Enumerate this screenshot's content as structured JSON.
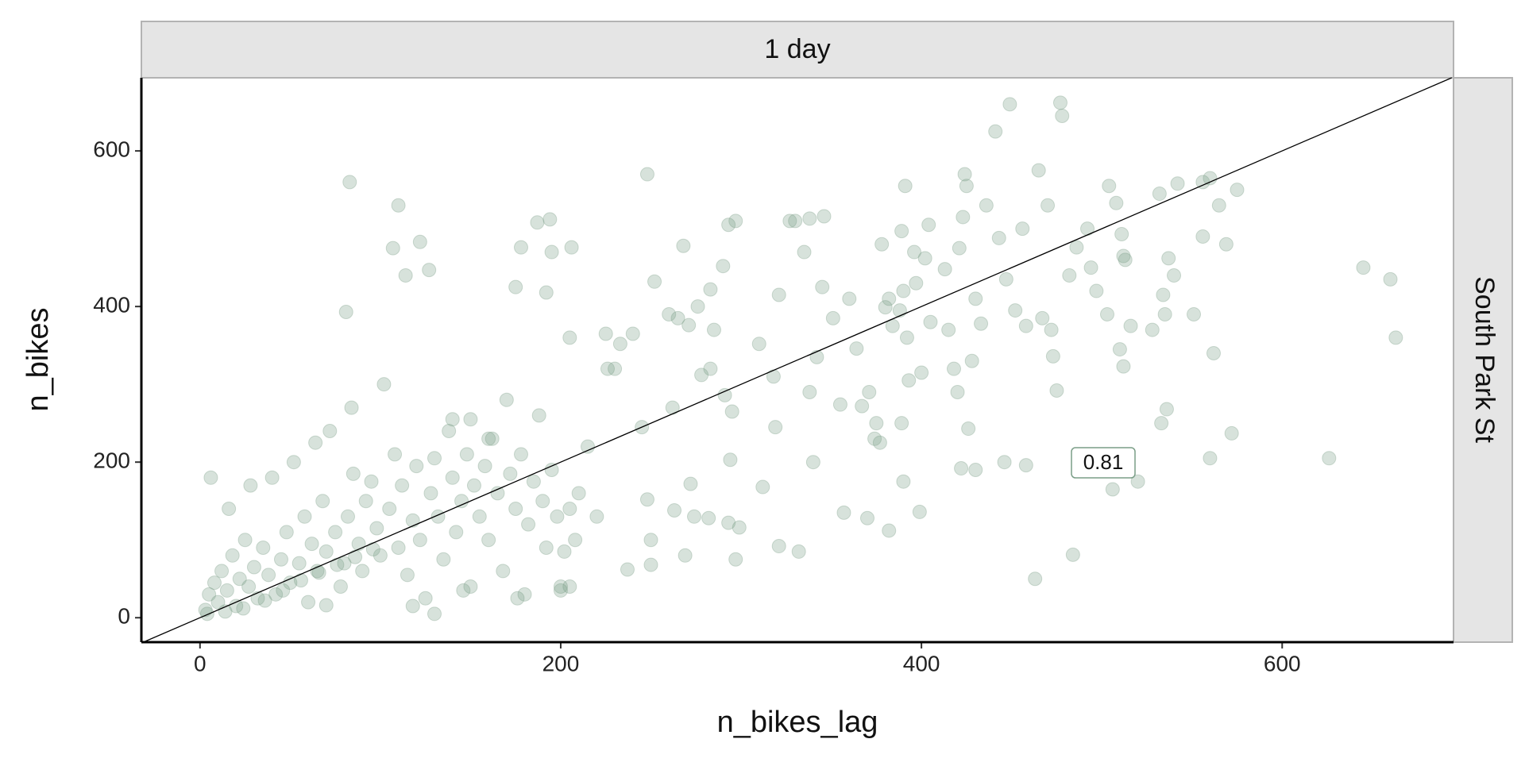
{
  "chart_data": {
    "type": "scatter",
    "facet_col": "1 day",
    "facet_row": "South Park St",
    "x_label": "n_bikes_lag",
    "y_label": "n_bikes",
    "annotation": "0.81",
    "color": "#7a9e87",
    "xlim": [
      -32.5,
      695
    ],
    "ylim": [
      -31.4,
      694
    ],
    "xticks": [
      0,
      200,
      400,
      600
    ],
    "yticks": [
      0,
      200,
      400,
      600
    ],
    "identity_line": true,
    "x": [
      83,
      110,
      107,
      122,
      127,
      114,
      81,
      248,
      194,
      187,
      178,
      195,
      206,
      175,
      192,
      205,
      225,
      233,
      240,
      226,
      230,
      252,
      268,
      283,
      290,
      293,
      297,
      260,
      265,
      271,
      276,
      285,
      283,
      278,
      262,
      245,
      248,
      263,
      272,
      250,
      237,
      250,
      269,
      274,
      282,
      293,
      299,
      297,
      294,
      291,
      295,
      310,
      319,
      312,
      321,
      327,
      330,
      335,
      338,
      346,
      345,
      338,
      340,
      332,
      321,
      351,
      355,
      357,
      364,
      367,
      370,
      371,
      375,
      374,
      377,
      378,
      380,
      382,
      384,
      388,
      390,
      391,
      389,
      392,
      393,
      389,
      390,
      382,
      396,
      397,
      402,
      404,
      400,
      399,
      413,
      415,
      418,
      420,
      423,
      424,
      425,
      421,
      428,
      426,
      430,
      422,
      433,
      436,
      441,
      443,
      447,
      449,
      452,
      456,
      458,
      463,
      458,
      465,
      467,
      472,
      475,
      470,
      473,
      478,
      477,
      482,
      484,
      492,
      494,
      497,
      503,
      506,
      504,
      508,
      511,
      512,
      513,
      510,
      512,
      516,
      520,
      528,
      533,
      534,
      535,
      537,
      536,
      532,
      542,
      551,
      556,
      556,
      560,
      560,
      562,
      565,
      569,
      572,
      575,
      626,
      645,
      660,
      663,
      540,
      486,
      446,
      430,
      360,
      405,
      342,
      318,
      3,
      5,
      8,
      10,
      12,
      15,
      18,
      20,
      22,
      25,
      27,
      30,
      32,
      35,
      38,
      40,
      42,
      45,
      48,
      50,
      52,
      55,
      58,
      60,
      62,
      65,
      68,
      70,
      72,
      75,
      78,
      80,
      82,
      85,
      88,
      90,
      92,
      95,
      98,
      100,
      102,
      105,
      108,
      110,
      112,
      115,
      118,
      120,
      122,
      125,
      128,
      130,
      132,
      135,
      138,
      140,
      142,
      145,
      148,
      150,
      152,
      155,
      158,
      160,
      162,
      165,
      168,
      170,
      172,
      175,
      178,
      180,
      182,
      185,
      188,
      190,
      192,
      195,
      198,
      200,
      202,
      205,
      208,
      210,
      215,
      220,
      6,
      4,
      14,
      24,
      36,
      46,
      56,
      66,
      76,
      86,
      96,
      16,
      28,
      64,
      84,
      70,
      118,
      130,
      146,
      176,
      200,
      205,
      160,
      150,
      140
    ],
    "values": [
      560,
      530,
      475,
      483,
      447,
      440,
      393,
      570,
      512,
      508,
      476,
      470,
      476,
      425,
      418,
      360,
      365,
      352,
      365,
      320,
      320,
      432,
      478,
      422,
      452,
      505,
      510,
      390,
      385,
      376,
      400,
      370,
      320,
      312,
      270,
      245,
      152,
      138,
      172,
      100,
      62,
      68,
      80,
      130,
      128,
      122,
      116,
      75,
      203,
      286,
      265,
      352,
      245,
      168,
      415,
      510,
      510,
      470,
      513,
      516,
      425,
      290,
      200,
      85,
      92,
      385,
      274,
      135,
      346,
      272,
      128,
      290,
      250,
      230,
      225,
      480,
      399,
      410,
      375,
      395,
      420,
      555,
      497,
      360,
      305,
      250,
      175,
      112,
      470,
      430,
      462,
      505,
      315,
      136,
      448,
      370,
      320,
      290,
      515,
      570,
      555,
      475,
      330,
      243,
      190,
      192,
      378,
      530,
      625,
      488,
      435,
      660,
      395,
      500,
      375,
      50,
      196,
      575,
      385,
      370,
      292,
      530,
      336,
      645,
      662,
      440,
      81,
      500,
      450,
      420,
      390,
      165,
      555,
      533,
      493,
      465,
      460,
      345,
      323,
      375,
      175,
      370,
      250,
      415,
      390,
      462,
      268,
      545,
      558,
      390,
      490,
      560,
      565,
      205,
      340,
      530,
      480,
      237,
      550,
      205,
      450,
      435,
      360,
      440,
      476,
      200,
      410,
      410,
      380,
      335,
      310,
      10,
      30,
      45,
      20,
      60,
      35,
      80,
      15,
      50,
      100,
      40,
      65,
      25,
      90,
      55,
      180,
      30,
      75,
      110,
      45,
      200,
      70,
      130,
      20,
      95,
      60,
      150,
      85,
      240,
      110,
      40,
      70,
      130,
      185,
      95,
      60,
      150,
      175,
      115,
      80,
      300,
      140,
      210,
      90,
      170,
      55,
      125,
      195,
      100,
      25,
      160,
      205,
      130,
      75,
      240,
      180,
      110,
      150,
      210,
      40,
      170,
      130,
      195,
      100,
      230,
      160,
      60,
      280,
      185,
      140,
      210,
      30,
      120,
      175,
      260,
      150,
      90,
      190,
      130,
      40,
      85,
      140,
      100,
      160,
      220,
      130,
      180,
      5,
      8,
      12,
      22,
      35,
      48,
      58,
      68,
      78,
      88,
      140,
      170,
      225,
      270,
      16,
      15,
      5,
      35,
      25,
      35,
      40,
      230,
      255,
      255
    ]
  }
}
